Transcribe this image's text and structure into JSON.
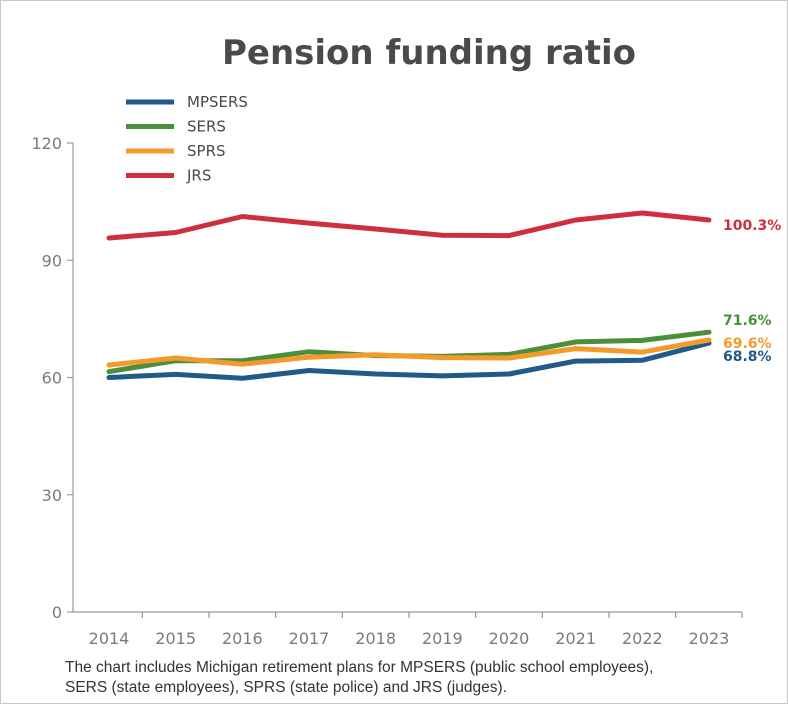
{
  "chart_data": {
    "type": "line",
    "title": "Pension funding ratio",
    "x": [
      "2014",
      "2015",
      "2016",
      "2017",
      "2018",
      "2019",
      "2020",
      "2021",
      "2022",
      "2023"
    ],
    "ylim": [
      0,
      120
    ],
    "yticks": [
      "0",
      "30",
      "60",
      "90",
      "120"
    ],
    "grid": false,
    "legend_position": "top-left",
    "series": [
      {
        "name": "MPSERS",
        "color": "#1f5a8a",
        "values": [
          60.0,
          60.8,
          59.8,
          61.8,
          60.9,
          60.4,
          60.9,
          64.2,
          64.4,
          68.8
        ],
        "end_label": "68.8%"
      },
      {
        "name": "SERS",
        "color": "#4a8f3c",
        "values": [
          61.5,
          64.3,
          64.3,
          66.6,
          65.6,
          65.4,
          65.9,
          69.1,
          69.5,
          71.6
        ],
        "end_label": "71.6%"
      },
      {
        "name": "SPRS",
        "color": "#f39a2b",
        "values": [
          63.2,
          65.0,
          63.4,
          65.2,
          65.8,
          65.1,
          65.0,
          67.4,
          66.5,
          69.6
        ],
        "end_label": "69.6%"
      },
      {
        "name": "JRS",
        "color": "#cf2e3c",
        "values": [
          95.7,
          97.1,
          101.2,
          99.5,
          98.0,
          96.4,
          96.3,
          100.3,
          102.1,
          100.3
        ],
        "end_label": "100.3%"
      }
    ]
  },
  "caption": {
    "line1": "The chart includes Michigan retirement plans for MPSERS (public school employees),",
    "line2": "SERS (state employees), SPRS (state police) and JRS (judges)."
  }
}
